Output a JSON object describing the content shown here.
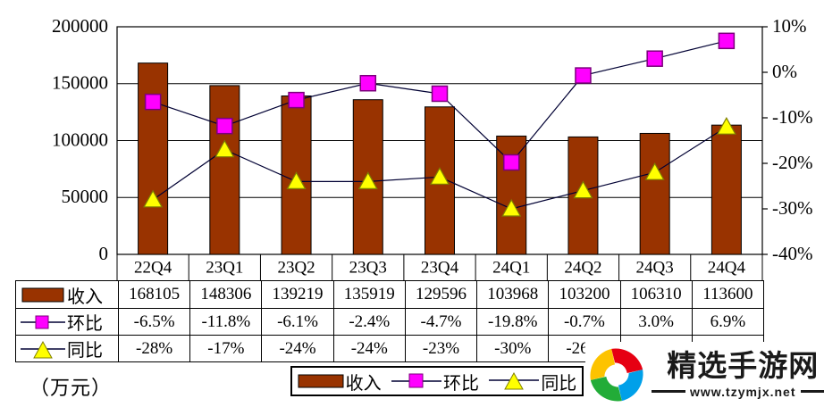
{
  "chart_data": {
    "type": "combo",
    "categories": [
      "22Q4",
      "23Q1",
      "23Q2",
      "23Q3",
      "23Q4",
      "24Q1",
      "24Q2",
      "24Q3",
      "24Q4"
    ],
    "series": [
      {
        "name": "收入",
        "type": "bar",
        "axis": "left",
        "values": [
          168105,
          148306,
          139219,
          135919,
          129596,
          103968,
          103200,
          106310,
          113600
        ]
      },
      {
        "name": "环比",
        "type": "line",
        "axis": "right",
        "marker": "square",
        "values": [
          -6.5,
          -11.8,
          -6.1,
          -2.4,
          -4.7,
          -19.8,
          -0.7,
          3.0,
          6.9
        ]
      },
      {
        "name": "同比",
        "type": "line",
        "axis": "right",
        "marker": "triangle",
        "values": [
          -28,
          -17,
          -24,
          -24,
          -23,
          -30,
          -26,
          -22,
          -12
        ]
      }
    ],
    "left_axis": {
      "min": 0,
      "max": 200000,
      "step": 50000,
      "labels": [
        "0",
        "50000",
        "100000",
        "150000",
        "200000"
      ]
    },
    "right_axis": {
      "min": -40,
      "max": 10,
      "step": 10,
      "labels": [
        "10%",
        "0%",
        "-10%",
        "-20%",
        "-30%",
        "-40%"
      ]
    },
    "grid": true,
    "legend_position": "bottom"
  },
  "table": {
    "columns": [
      "22Q4",
      "23Q1",
      "23Q2",
      "23Q3",
      "23Q4",
      "24Q1",
      "24Q2",
      "24Q3",
      "24Q4"
    ],
    "rows": [
      {
        "header": "收入",
        "swatch": "bar",
        "cells": [
          "168105",
          "148306",
          "139219",
          "135919",
          "129596",
          "103968",
          "103200",
          "106310",
          "113600"
        ]
      },
      {
        "header": "环比",
        "swatch": "square",
        "cells": [
          "-6.5%",
          "-11.8%",
          "-6.1%",
          "-2.4%",
          "-4.7%",
          "-19.8%",
          "-0.7%",
          "3.0%",
          "6.9%"
        ]
      },
      {
        "header": "同比",
        "swatch": "triangle",
        "cells": [
          "-28%",
          "-17%",
          "-24%",
          "-24%",
          "-23%",
          "-30%",
          "-26%",
          "",
          ""
        ]
      }
    ]
  },
  "legend": {
    "items": [
      {
        "label": "收入",
        "swatch": "bar"
      },
      {
        "label": "环比",
        "swatch": "square"
      },
      {
        "label": "同比",
        "swatch": "triangle"
      }
    ]
  },
  "unit_label": "（万元）",
  "watermark": {
    "title": "精选手游网",
    "url": "www.tzymjx.net",
    "logo_colors": [
      "#E60012",
      "#00A0E9",
      "#22AC38",
      "#FDC300"
    ]
  },
  "colors": {
    "bar": "#993300",
    "bar_border": "#000000",
    "qoq_marker": "#FF00FF",
    "qoq_marker_border": "#7B007B",
    "yoy_marker": "#FFFF00",
    "yoy_marker_border": "#7F7F00",
    "line": "#000033",
    "axis": "#000000"
  }
}
